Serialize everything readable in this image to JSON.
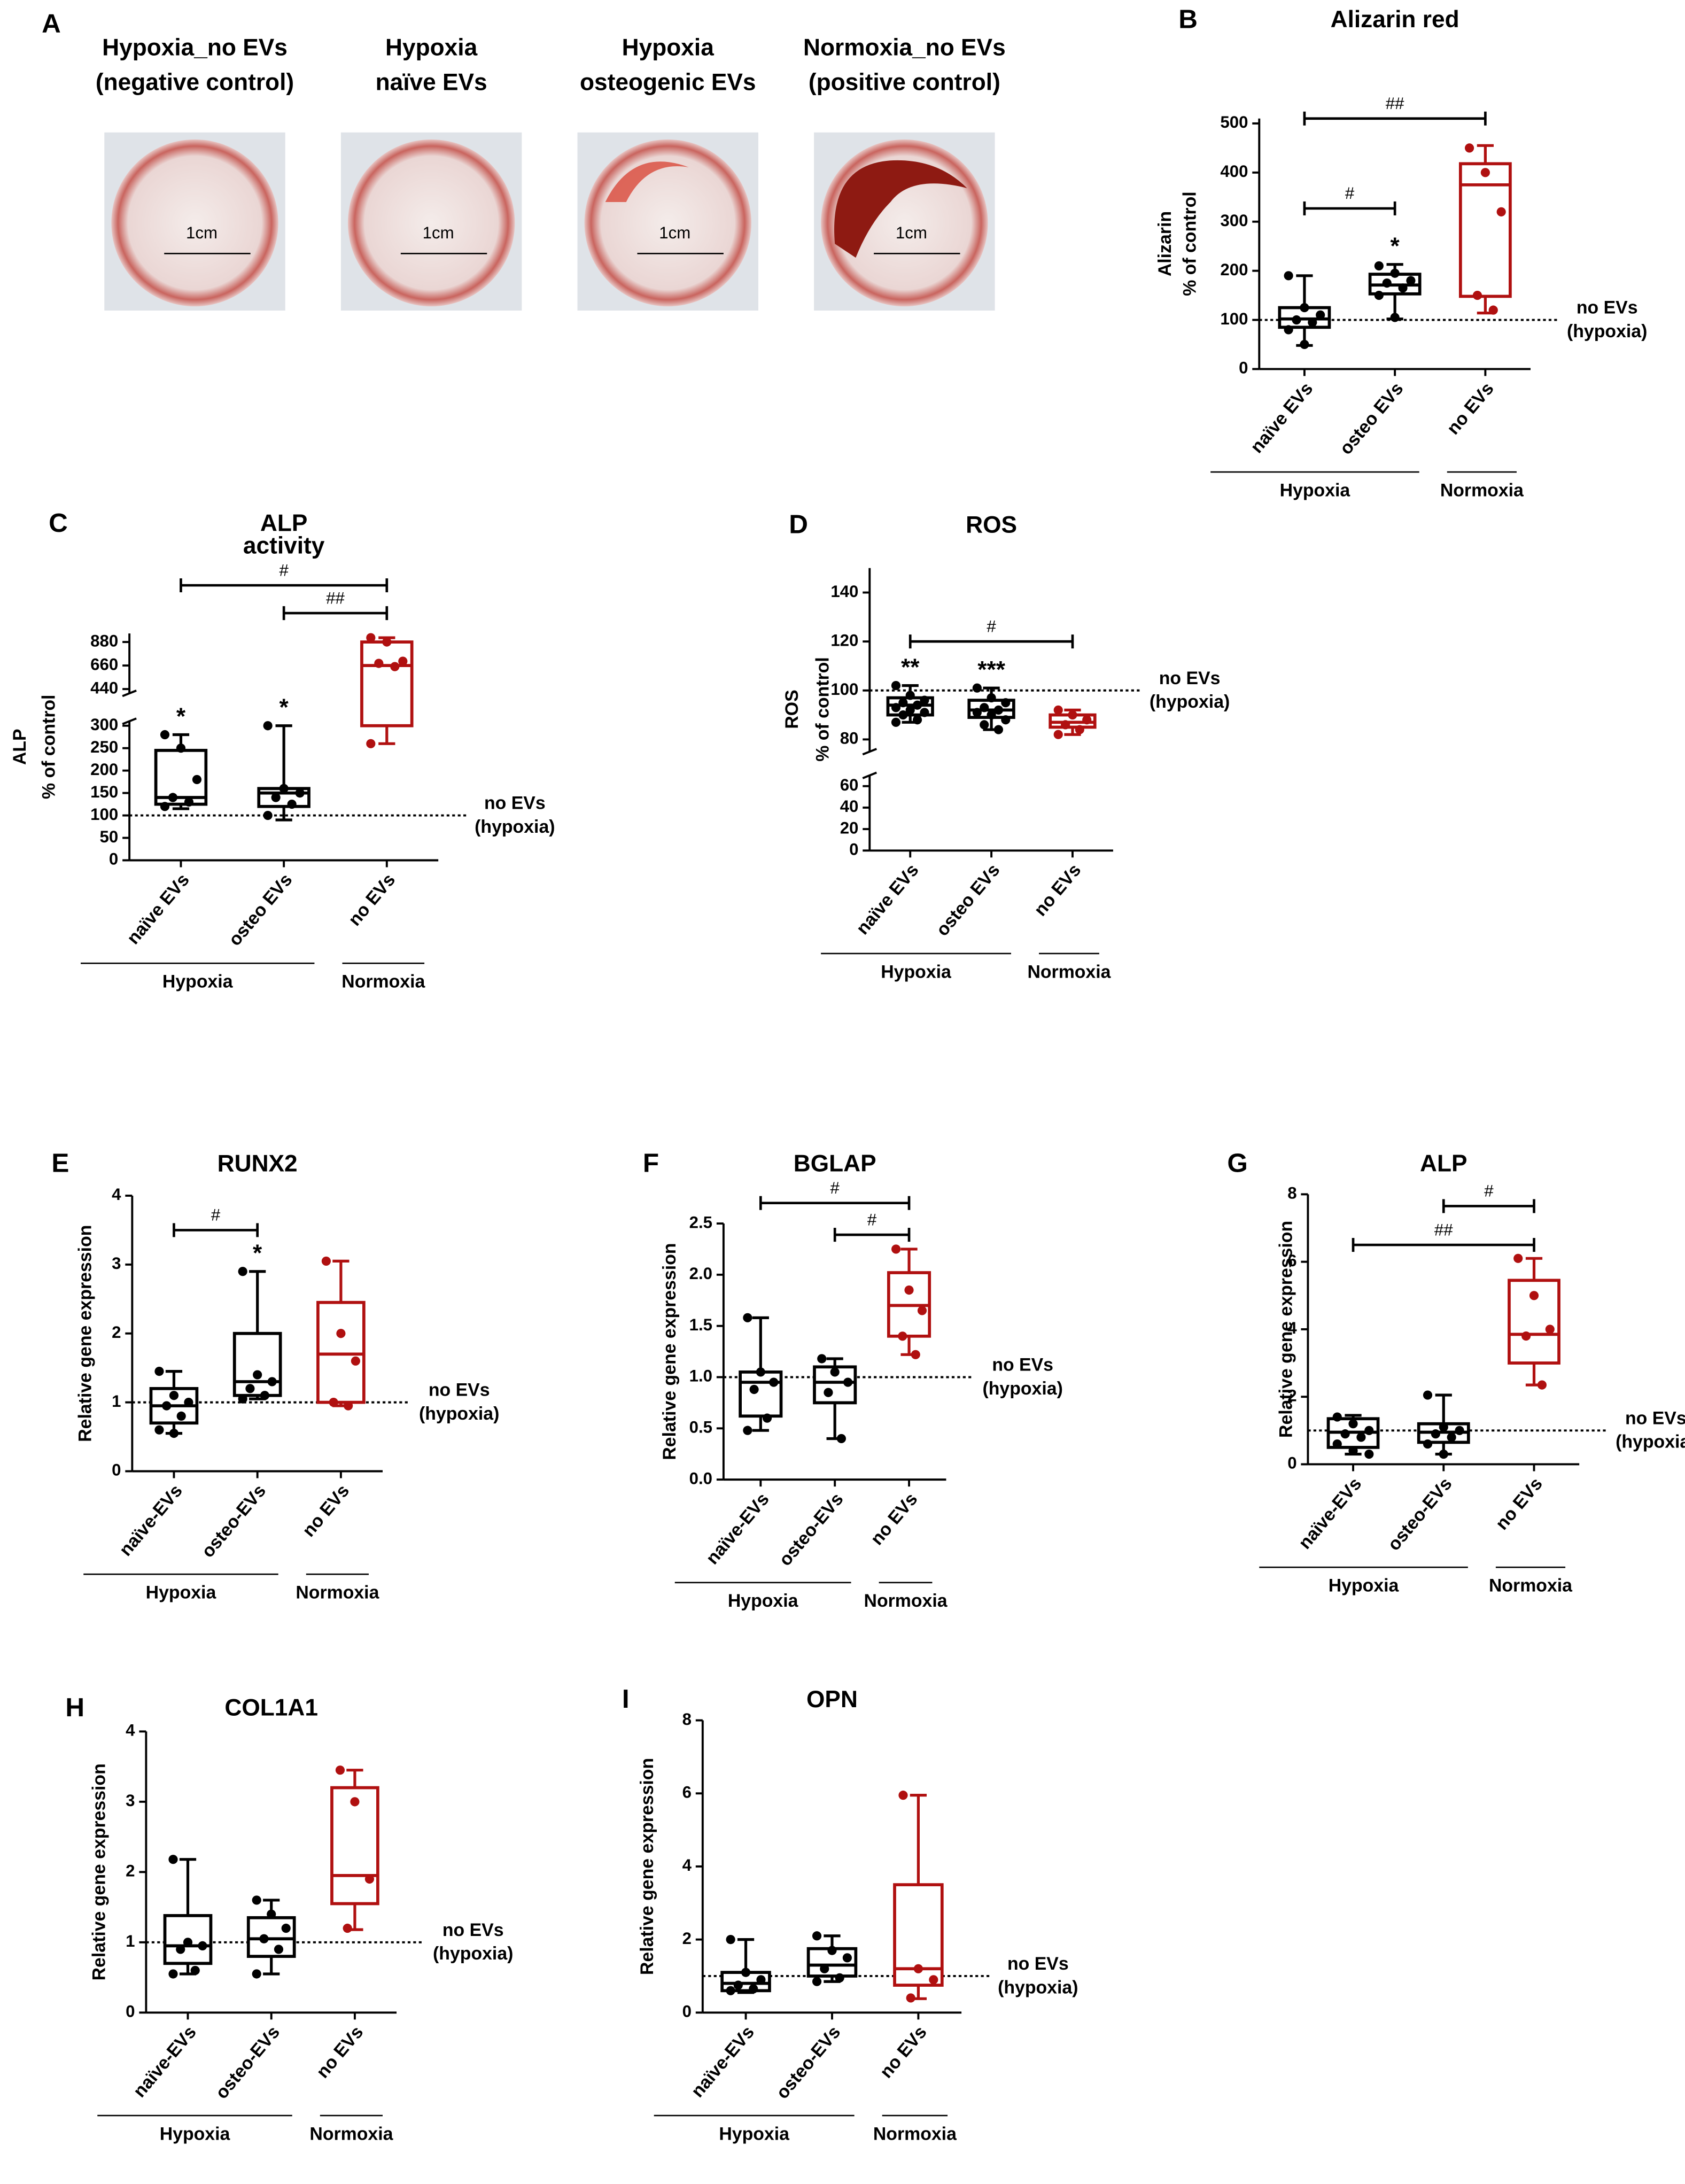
{
  "panel_a": {
    "label": "A",
    "wells": [
      {
        "title": [
          "Hypoxia_no EVs",
          "(negative control)"
        ],
        "scale": "1cm"
      },
      {
        "title": [
          "Hypoxia",
          "naïve EVs"
        ],
        "scale": "1cm"
      },
      {
        "title": [
          "Hypoxia",
          "osteogenic EVs"
        ],
        "scale": "1cm"
      },
      {
        "title": [
          "Normoxia_no EVs",
          "(positive control)"
        ],
        "scale": "1cm"
      }
    ]
  },
  "chart_data": [
    {
      "type": "box",
      "label": "B",
      "title": [
        "Alizarin red"
      ],
      "ylabel": [
        "Alizarin",
        "% of control"
      ],
      "categories": [
        "naïve EVs",
        "osteo EVs",
        "no EVs"
      ],
      "colors": [
        "#000000",
        "#000000",
        "#b01010"
      ],
      "groups": [
        {
          "name": "Hypoxia",
          "color": "#000000",
          "size": 2
        },
        {
          "name": "Normoxia",
          "color": "#c00000",
          "size": 1
        }
      ],
      "ylim": [
        0,
        510
      ],
      "yticks": [
        0,
        100,
        200,
        300,
        400,
        500
      ],
      "reference": {
        "value": 100,
        "label": [
          "no EVs",
          "(hypoxia)"
        ]
      },
      "boxes": [
        {
          "min": 48,
          "q1": 85,
          "median": 102,
          "q3": 125,
          "max": 190,
          "points": [
            190,
            125,
            110,
            100,
            95,
            80,
            50
          ]
        },
        {
          "min": 102,
          "q1": 153,
          "median": 171,
          "q3": 193,
          "max": 213,
          "points": [
            210,
            195,
            180,
            175,
            165,
            150,
            105
          ]
        },
        {
          "min": 114,
          "q1": 148,
          "median": 375,
          "q3": 418,
          "max": 455,
          "points": [
            450,
            400,
            320,
            150,
            120
          ]
        }
      ],
      "stars": [
        {
          "category": 1,
          "text": "*"
        }
      ],
      "brackets": [
        {
          "from": 0,
          "to": 1,
          "y": 327,
          "text": "#"
        },
        {
          "from": 0,
          "to": 2,
          "y": 510,
          "text": "##"
        }
      ]
    },
    {
      "type": "box",
      "label": "C",
      "title": [
        "ALP",
        "activity"
      ],
      "ylabel": [
        "ALP",
        "% of control"
      ],
      "categories": [
        "naïve EVs",
        "osteo EVs",
        "no EVs"
      ],
      "colors": [
        "#000000",
        "#000000",
        "#b01010"
      ],
      "groups": [
        {
          "name": "Hypoxia",
          "color": "#000000",
          "size": 2
        },
        {
          "name": "Normoxia",
          "color": "#c00000",
          "size": 1
        }
      ],
      "axis_segments": [
        {
          "ylim": [
            0,
            310
          ],
          "yticks": [
            0,
            50,
            100,
            150,
            200,
            250,
            300
          ]
        },
        {
          "ylim": [
            400,
            960
          ],
          "yticks": [
            440,
            660,
            880
          ]
        }
      ],
      "reference": {
        "value": 100,
        "label": [
          "no EVs",
          "(hypoxia)"
        ]
      },
      "boxes": [
        {
          "min": 115,
          "q1": 125,
          "median": 140,
          "q3": 245,
          "max": 280,
          "points": [
            280,
            250,
            180,
            140,
            130,
            120
          ]
        },
        {
          "min": 90,
          "q1": 120,
          "median": 150,
          "q3": 160,
          "max": 300,
          "points": [
            300,
            160,
            150,
            140,
            125,
            100
          ]
        },
        {
          "min": 260,
          "q1": 300,
          "median": 660,
          "q3": 880,
          "max": 920,
          "points": [
            920,
            880,
            700,
            680,
            650,
            260
          ]
        }
      ],
      "stars": [
        {
          "category": 0,
          "text": "*"
        },
        {
          "category": 1,
          "text": "*"
        }
      ],
      "brackets": [
        {
          "from": 0,
          "to": 2,
          "y": 1410,
          "text": "#"
        },
        {
          "from": 1,
          "to": 2,
          "y": 1150,
          "text": "##"
        }
      ]
    },
    {
      "type": "box",
      "label": "D",
      "title": [
        "ROS"
      ],
      "ylabel": [
        "ROS",
        "% of control"
      ],
      "categories": [
        "naïve EVs",
        "osteo EVs",
        "no EVs"
      ],
      "colors": [
        "#000000",
        "#000000",
        "#b01010"
      ],
      "groups": [
        {
          "name": "Hypoxia",
          "color": "#000000",
          "size": 2
        },
        {
          "name": "Normoxia",
          "color": "#c00000",
          "size": 1
        }
      ],
      "axis_segments": [
        {
          "ylim": [
            0,
            70
          ],
          "yticks": [
            0,
            20,
            40,
            60
          ]
        },
        {
          "ylim": [
            75,
            150
          ],
          "yticks": [
            80,
            100,
            120,
            140
          ]
        }
      ],
      "reference": {
        "value": 100,
        "label": [
          "no EVs",
          "(hypoxia)"
        ]
      },
      "boxes": [
        {
          "min": 87,
          "q1": 90,
          "median": 94,
          "q3": 97,
          "max": 102,
          "points": [
            102,
            98,
            96,
            95,
            94,
            93,
            92,
            91,
            90,
            88,
            87
          ]
        },
        {
          "min": 84,
          "q1": 89,
          "median": 92,
          "q3": 96,
          "max": 101,
          "points": [
            101,
            97,
            95,
            93,
            92,
            91,
            90,
            88,
            86,
            84
          ]
        },
        {
          "min": 82,
          "q1": 85,
          "median": 87,
          "q3": 90,
          "max": 92,
          "points": [
            92,
            90,
            88,
            86,
            84,
            82
          ]
        }
      ],
      "stars": [
        {
          "category": 0,
          "text": "**"
        },
        {
          "category": 1,
          "text": "***"
        }
      ],
      "brackets": [
        {
          "from": 0,
          "to": 2,
          "y": 120,
          "text": "#"
        }
      ]
    },
    {
      "type": "box",
      "label": "E",
      "title": [
        "RUNX2"
      ],
      "ylabel": [
        "Relative gene expression"
      ],
      "categories": [
        "naïve-EVs",
        "osteo-EVs",
        "no EVs"
      ],
      "colors": [
        "#000000",
        "#000000",
        "#b01010"
      ],
      "groups": [
        {
          "name": "Hypoxia",
          "color": "#000000",
          "size": 2
        },
        {
          "name": "Normoxia",
          "color": "#c00000",
          "size": 1
        }
      ],
      "ylim": [
        0,
        4
      ],
      "yticks": [
        0,
        1,
        2,
        3,
        4
      ],
      "reference": {
        "value": 1,
        "label": [
          "no EVs",
          "(hypoxia)"
        ]
      },
      "boxes": [
        {
          "min": 0.55,
          "q1": 0.7,
          "median": 0.95,
          "q3": 1.2,
          "max": 1.45,
          "points": [
            1.45,
            1.1,
            1.0,
            0.95,
            0.8,
            0.6,
            0.55
          ]
        },
        {
          "min": 1.05,
          "q1": 1.1,
          "median": 1.3,
          "q3": 2.0,
          "max": 2.9,
          "points": [
            2.9,
            1.4,
            1.3,
            1.2,
            1.1,
            1.05
          ]
        },
        {
          "min": 0.95,
          "q1": 1.0,
          "median": 1.7,
          "q3": 2.45,
          "max": 3.05,
          "points": [
            3.05,
            2.0,
            1.6,
            1.0,
            0.95
          ]
        }
      ],
      "stars": [
        {
          "category": 1,
          "text": "*"
        }
      ],
      "brackets": [
        {
          "from": 0,
          "to": 1,
          "y": 3.5,
          "text": "#"
        }
      ]
    },
    {
      "type": "box",
      "label": "F",
      "title": [
        "BGLAP"
      ],
      "ylabel": [
        "Relative gene expression"
      ],
      "categories": [
        "naïve-EVs",
        "osteo-EVs",
        "no EVs"
      ],
      "colors": [
        "#000000",
        "#000000",
        "#b01010"
      ],
      "groups": [
        {
          "name": "Hypoxia",
          "color": "#000000",
          "size": 2
        },
        {
          "name": "Normoxia",
          "color": "#c00000",
          "size": 1
        }
      ],
      "ylim": [
        0,
        2.5
      ],
      "yticks": [
        {
          "value": 0,
          "label": "0.0"
        },
        0.5,
        {
          "value": 1,
          "label": "1.0"
        },
        1.5,
        {
          "value": 2,
          "label": "2.0"
        },
        2.5
      ],
      "reference": {
        "value": 1,
        "label": [
          "no EVs",
          "(hypoxia)"
        ]
      },
      "boxes": [
        {
          "min": 0.48,
          "q1": 0.62,
          "median": 0.95,
          "q3": 1.05,
          "max": 1.58,
          "points": [
            1.58,
            1.05,
            0.95,
            0.88,
            0.6,
            0.48
          ]
        },
        {
          "min": 0.4,
          "q1": 0.75,
          "median": 0.95,
          "q3": 1.1,
          "max": 1.18,
          "points": [
            1.18,
            1.05,
            0.95,
            0.85,
            0.4
          ]
        },
        {
          "min": 1.22,
          "q1": 1.4,
          "median": 1.7,
          "q3": 2.02,
          "max": 2.25,
          "points": [
            2.25,
            1.85,
            1.65,
            1.4,
            1.22
          ]
        }
      ],
      "stars": [],
      "brackets": [
        {
          "from": 0,
          "to": 2,
          "y": 2.7,
          "text": "#"
        },
        {
          "from": 1,
          "to": 2,
          "y": 2.39,
          "text": "#"
        }
      ]
    },
    {
      "type": "box",
      "label": "G",
      "title": [
        "ALP"
      ],
      "ylabel": [
        "Relative gene expression"
      ],
      "categories": [
        "naïve-EVs",
        "osteo-EVs",
        "no EVs"
      ],
      "colors": [
        "#000000",
        "#000000",
        "#b01010"
      ],
      "groups": [
        {
          "name": "Hypoxia",
          "color": "#000000",
          "size": 2
        },
        {
          "name": "Normoxia",
          "color": "#c00000",
          "size": 1
        }
      ],
      "ylim": [
        0,
        8
      ],
      "yticks": [
        0,
        2,
        4,
        6,
        8
      ],
      "reference": {
        "value": 1,
        "label": [
          "no EVs",
          "(hypoxia)"
        ]
      },
      "boxes": [
        {
          "min": 0.3,
          "q1": 0.5,
          "median": 0.95,
          "q3": 1.35,
          "max": 1.45,
          "points": [
            1.4,
            1.2,
            1.0,
            0.9,
            0.8,
            0.6,
            0.4,
            0.3
          ]
        },
        {
          "min": 0.3,
          "q1": 0.65,
          "median": 0.95,
          "q3": 1.2,
          "max": 2.05,
          "points": [
            2.05,
            1.1,
            1.0,
            0.9,
            0.8,
            0.6,
            0.3
          ]
        },
        {
          "min": 2.35,
          "q1": 3.0,
          "median": 3.85,
          "q3": 5.45,
          "max": 6.1,
          "points": [
            6.1,
            5.0,
            4.0,
            3.8,
            2.35
          ]
        }
      ],
      "stars": [],
      "brackets": [
        {
          "from": 1,
          "to": 2,
          "y": 7.65,
          "text": "#"
        },
        {
          "from": 0,
          "to": 2,
          "y": 6.5,
          "text": "##"
        }
      ]
    },
    {
      "type": "box",
      "label": "H",
      "title": [
        "COL1A1"
      ],
      "ylabel": [
        "Relative gene expression"
      ],
      "categories": [
        "naïve-EVs",
        "osteo-EVs",
        "no EVs"
      ],
      "colors": [
        "#000000",
        "#000000",
        "#b01010"
      ],
      "groups": [
        {
          "name": "Hypoxia",
          "color": "#000000",
          "size": 2
        },
        {
          "name": "Normoxia",
          "color": "#c00000",
          "size": 1
        }
      ],
      "ylim": [
        0,
        4
      ],
      "yticks": [
        0,
        1,
        2,
        3,
        4
      ],
      "reference": {
        "value": 1,
        "label": [
          "no EVs",
          "(hypoxia)"
        ]
      },
      "boxes": [
        {
          "min": 0.55,
          "q1": 0.7,
          "median": 0.95,
          "q3": 1.38,
          "max": 2.18,
          "points": [
            2.18,
            1.0,
            0.95,
            0.9,
            0.6,
            0.55
          ]
        },
        {
          "min": 0.55,
          "q1": 0.8,
          "median": 1.05,
          "q3": 1.35,
          "max": 1.6,
          "points": [
            1.6,
            1.4,
            1.2,
            1.05,
            0.9,
            0.55
          ]
        },
        {
          "min": 1.18,
          "q1": 1.55,
          "median": 1.95,
          "q3": 3.2,
          "max": 3.45,
          "points": [
            3.45,
            3.0,
            1.9,
            1.2
          ]
        }
      ],
      "stars": [],
      "brackets": []
    },
    {
      "type": "box",
      "label": "I",
      "title": [
        "OPN"
      ],
      "ylabel": [
        "Relative gene expression"
      ],
      "categories": [
        "naïve-EVs",
        "osteo-EVs",
        "no EVs"
      ],
      "colors": [
        "#000000",
        "#000000",
        "#b01010"
      ],
      "groups": [
        {
          "name": "Hypoxia",
          "color": "#000000",
          "size": 2
        },
        {
          "name": "Normoxia",
          "color": "#c00000",
          "size": 1
        }
      ],
      "ylim": [
        0,
        8
      ],
      "yticks": [
        0,
        2,
        4,
        6,
        8
      ],
      "reference": {
        "value": 1,
        "label": [
          "no EVs",
          "(hypoxia)"
        ]
      },
      "boxes": [
        {
          "min": 0.55,
          "q1": 0.6,
          "median": 0.8,
          "q3": 1.1,
          "max": 2.0,
          "points": [
            2.0,
            1.1,
            0.9,
            0.75,
            0.65,
            0.6
          ]
        },
        {
          "min": 0.85,
          "q1": 1.0,
          "median": 1.3,
          "q3": 1.75,
          "max": 2.1,
          "points": [
            2.1,
            1.7,
            1.5,
            1.2,
            0.95,
            0.85
          ]
        },
        {
          "min": 0.38,
          "q1": 0.75,
          "median": 1.2,
          "q3": 3.5,
          "max": 5.95,
          "points": [
            5.95,
            1.2,
            0.9,
            0.4
          ]
        }
      ],
      "stars": [],
      "brackets": []
    }
  ]
}
